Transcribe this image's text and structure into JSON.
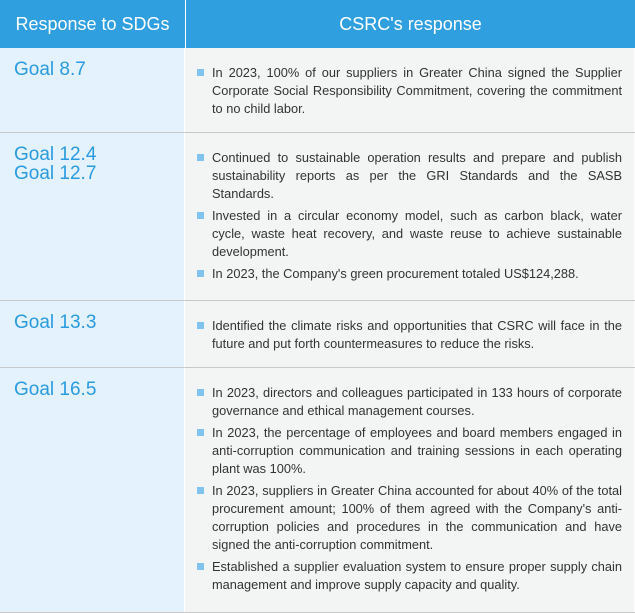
{
  "header": {
    "left": "Response to SDGs",
    "right": "CSRC's response"
  },
  "rows": [
    {
      "goals": [
        "Goal 8.7"
      ],
      "items": [
        "In 2023, 100% of our suppliers in Greater China signed the Supplier Corporate Social Responsibility Commitment, covering the commitment to no child labor."
      ]
    },
    {
      "goals": [
        "Goal 12.4",
        "Goal 12.7"
      ],
      "items": [
        "Continued to sustainable operation results and prepare and publish sustainability reports as per the GRI Standards and the SASB Standards.",
        "Invested in a circular economy model, such as carbon black, water cycle, waste heat recovery, and waste reuse to achieve sustainable development.",
        "In 2023, the Company's green procurement totaled US$124,288."
      ]
    },
    {
      "goals": [
        "Goal 13.3"
      ],
      "items": [
        "Identified the climate risks and opportunities that CSRC will face in the future and put forth countermeasures to reduce the risks."
      ]
    },
    {
      "goals": [
        "Goal 16.5"
      ],
      "items": [
        "In 2023, directors and colleagues participated in 133 hours of corporate governance and ethical management courses.",
        "In 2023, the percentage of employees and board members engaged in anti-corruption communication and training sessions in each operating plant was 100%.",
        "In 2023, suppliers in Greater China accounted for about 40% of the total procurement amount; 100% of them agreed with the Company's anti-corruption policies and procedures in the communication and have signed the anti-corruption commitment.",
        "Established a supplier evaluation system to ensure proper supply chain management and improve supply capacity and quality."
      ]
    }
  ]
}
